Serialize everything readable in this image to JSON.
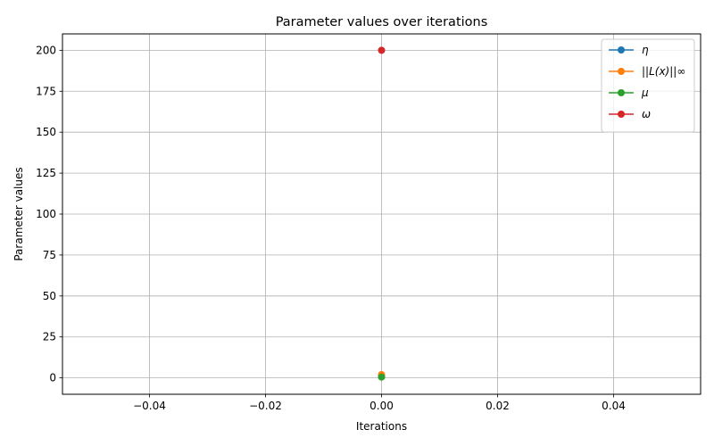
{
  "chart_data": {
    "type": "line",
    "title": "Parameter values over iterations",
    "xlabel": "Iterations",
    "ylabel": "Parameter values",
    "xlim": [
      -0.055,
      0.055
    ],
    "ylim": [
      -10,
      210
    ],
    "xticks": [
      -0.04,
      -0.02,
      0.0,
      0.02,
      0.04
    ],
    "xtick_labels": [
      "−0.04",
      "−0.02",
      "0.00",
      "0.02",
      "0.04"
    ],
    "yticks": [
      0,
      25,
      50,
      75,
      100,
      125,
      150,
      175,
      200
    ],
    "ytick_labels": [
      "0",
      "25",
      "50",
      "75",
      "100",
      "125",
      "150",
      "175",
      "200"
    ],
    "grid": true,
    "legend_position": "top-right",
    "series": [
      {
        "name": "η",
        "color": "#1f77b4",
        "x": [
          0
        ],
        "y": [
          1
        ]
      },
      {
        "name": "||L(x)||∞",
        "color": "#ff7f0e",
        "x": [
          0
        ],
        "y": [
          2
        ]
      },
      {
        "name": "μ",
        "color": "#2ca02c",
        "x": [
          0
        ],
        "y": [
          0.5
        ]
      },
      {
        "name": "ω",
        "color": "#d62728",
        "x": [
          0
        ],
        "y": [
          200
        ]
      }
    ]
  }
}
